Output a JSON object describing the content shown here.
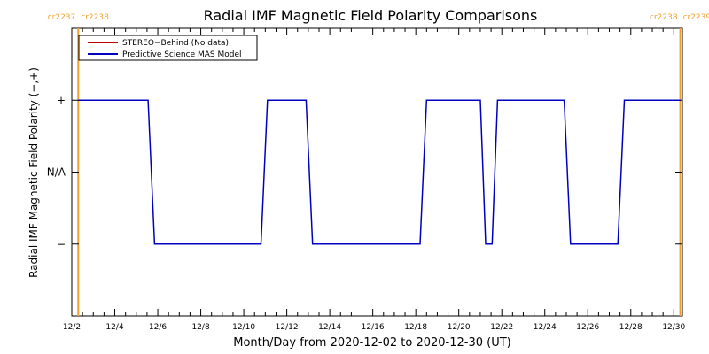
{
  "chart_data": {
    "type": "line",
    "title": "Radial IMF Magnetic Field Polarity Comparisons",
    "xlabel": "Month/Day from 2020-12-02 to 2020-12-30 (UT)",
    "ylabel": "Radial IMF Magnetic Field Polarity (−,+)",
    "xlim_days": [
      0,
      28.4
    ],
    "ylim": [
      -2,
      2
    ],
    "x_ticks": [
      {
        "day": 0,
        "label": "12/2"
      },
      {
        "day": 2,
        "label": "12/4"
      },
      {
        "day": 4,
        "label": "12/6"
      },
      {
        "day": 6,
        "label": "12/8"
      },
      {
        "day": 8,
        "label": "12/10"
      },
      {
        "day": 10,
        "label": "12/12"
      },
      {
        "day": 12,
        "label": "12/14"
      },
      {
        "day": 14,
        "label": "12/16"
      },
      {
        "day": 16,
        "label": "12/18"
      },
      {
        "day": 18,
        "label": "12/20"
      },
      {
        "day": 20,
        "label": "12/22"
      },
      {
        "day": 22,
        "label": "12/24"
      },
      {
        "day": 24,
        "label": "12/26"
      },
      {
        "day": 26,
        "label": "12/28"
      },
      {
        "day": 28,
        "label": "12/30"
      }
    ],
    "y_ticks": [
      {
        "value": 1,
        "label": "+"
      },
      {
        "value": 0,
        "label": "N/A"
      },
      {
        "value": -1,
        "label": "−"
      }
    ],
    "legend": {
      "position": "top-left",
      "entries": [
        {
          "label": "STEREO−Behind (No data)",
          "color": "#c00000"
        },
        {
          "label": "Predictive Science MAS Model",
          "color": "#0000c0"
        }
      ]
    },
    "carrington_markers": [
      {
        "day": 0.3,
        "left_label": "cr2237",
        "right_label": "cr2238",
        "color": "#f0a030"
      },
      {
        "day": 28.3,
        "left_label": "cr2238",
        "right_label": "cr2239",
        "color": "#f0a030"
      }
    ],
    "series": [
      {
        "name": "Predictive Science MAS Model",
        "color": "#0000c0",
        "points": [
          [
            0.3,
            1
          ],
          [
            3.55,
            1
          ],
          [
            3.85,
            -1
          ],
          [
            8.8,
            -1
          ],
          [
            9.1,
            1
          ],
          [
            10.9,
            1
          ],
          [
            11.2,
            -1
          ],
          [
            16.2,
            -1
          ],
          [
            16.5,
            1
          ],
          [
            19.0,
            1
          ],
          [
            19.25,
            -1
          ],
          [
            19.55,
            -1
          ],
          [
            19.8,
            1
          ],
          [
            22.9,
            1
          ],
          [
            23.2,
            -1
          ],
          [
            25.4,
            -1
          ],
          [
            25.7,
            1
          ],
          [
            28.3,
            1
          ]
        ]
      },
      {
        "name": "STEREO−Behind (No data)",
        "color": "#c00000",
        "points": []
      }
    ]
  }
}
